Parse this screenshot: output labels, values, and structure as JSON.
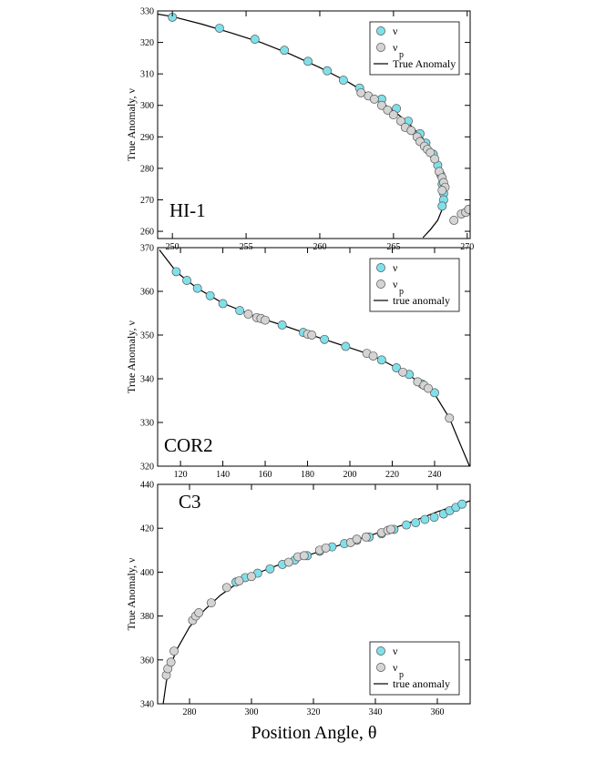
{
  "chart_data": [
    {
      "type": "scatter",
      "label": "HI-1",
      "ylabel": "True Anomaly, ν",
      "xlim": [
        249,
        270.2
      ],
      "ylim": [
        257.7,
        330
      ],
      "xticks": [
        250,
        255,
        260,
        265,
        270
      ],
      "yticks": [
        260,
        270,
        280,
        290,
        300,
        310,
        320,
        330
      ],
      "legend": "upper right",
      "series": [
        {
          "name": "ν",
          "color": "#80e0ea",
          "mode": "markers",
          "x": [
            250,
            253.2,
            255.6,
            257.6,
            259.2,
            260.5,
            261.6,
            262.7,
            264.2,
            265.2,
            266.0,
            266.8,
            267.2,
            267.7,
            268.0,
            268.2,
            268.3,
            268.4,
            268.4,
            268.3
          ],
          "values": [
            328,
            324.5,
            321,
            317.5,
            314,
            311,
            308,
            305.5,
            302,
            299,
            295,
            291,
            288,
            284.5,
            281,
            278,
            275,
            272,
            270,
            268
          ]
        },
        {
          "name": "ν",
          "subscript": "p",
          "color": "#d4d4d4",
          "mode": "markers",
          "x": [
            262.8,
            263.3,
            263.7,
            264.2,
            264.6,
            265.0,
            265.5,
            265.8,
            266.2,
            266.6,
            266.8,
            267.1,
            267.3,
            267.5,
            267.8,
            268.1,
            268.3,
            268.4,
            268.5,
            268.3,
            269.1,
            269.6,
            269.9,
            270.1
          ],
          "values": [
            304,
            303,
            302,
            300,
            298.5,
            297,
            295,
            293,
            292,
            290,
            288.5,
            287,
            286,
            285,
            283,
            279,
            277,
            275.5,
            274,
            273,
            263.5,
            265.5,
            266,
            267
          ]
        },
        {
          "name": "True Anomaly",
          "color": "#000000",
          "mode": "line",
          "x": [
            249.0,
            250,
            252,
            254,
            256,
            258,
            260,
            262,
            264,
            265,
            266,
            267,
            267.8,
            268.2,
            268.4,
            268.3,
            268.0,
            267.5,
            267.0
          ],
          "values": [
            329,
            328.2,
            325.8,
            323,
            320,
            316.3,
            312,
            307.2,
            301.5,
            298.3,
            294.5,
            289.5,
            283,
            277,
            271,
            267,
            263.5,
            260.5,
            258
          ]
        }
      ]
    },
    {
      "type": "scatter",
      "label": "COR2",
      "ylabel": "True Anomaly, ν",
      "xlim": [
        109.2,
        256.8
      ],
      "ylim": [
        320,
        370
      ],
      "xticks": [
        120,
        140,
        160,
        180,
        200,
        220,
        240
      ],
      "yticks": [
        320,
        330,
        340,
        350,
        360,
        370
      ],
      "legend": "upper right",
      "series": [
        {
          "name": "ν",
          "color": "#80e0ea",
          "mode": "markers",
          "x": [
            118,
            123,
            128,
            134,
            140,
            148,
            168,
            178,
            188,
            198,
            215,
            222,
            228,
            234,
            240
          ],
          "values": [
            364.5,
            362.5,
            360.7,
            359,
            357.2,
            355.6,
            352.3,
            350.6,
            349,
            347.4,
            344.3,
            342.5,
            341,
            338.8,
            336.8
          ]
        },
        {
          "name": "ν",
          "subscript": "p",
          "color": "#d4d4d4",
          "mode": "markers",
          "x": [
            152,
            156,
            158,
            160,
            180,
            182,
            208,
            211,
            225,
            232,
            235,
            237,
            247
          ],
          "values": [
            354.8,
            354,
            353.8,
            353.4,
            350.2,
            350,
            345.8,
            345.2,
            341.5,
            339.3,
            338.5,
            337.8,
            331
          ]
        },
        {
          "name": "true anomaly",
          "color": "#000000",
          "mode": "line",
          "x": [
            110,
            118,
            123,
            128,
            134,
            140,
            148,
            155,
            160,
            168,
            178,
            188,
            198,
            208,
            215,
            222,
            228,
            234,
            240,
            247,
            250,
            253,
            256.5
          ],
          "values": [
            369.5,
            364.5,
            362.5,
            360.7,
            359,
            357.3,
            355.7,
            354.3,
            353.5,
            352.3,
            350.6,
            349,
            347.4,
            345.8,
            344.3,
            342.5,
            340.8,
            338.8,
            336.5,
            331,
            327.5,
            324,
            320
          ]
        }
      ]
    },
    {
      "type": "scatter",
      "label": "C3",
      "ylabel": "True Anomaly, ν",
      "xlabel": "Position Angle, θ",
      "xlim": [
        269.7,
        370.6
      ],
      "ylim": [
        340,
        440
      ],
      "xticks": [
        280,
        300,
        320,
        340,
        360
      ],
      "yticks": [
        340,
        360,
        380,
        400,
        420,
        440
      ],
      "legend": "lower right",
      "series": [
        {
          "name": "ν",
          "color": "#80e0ea",
          "mode": "markers",
          "x": [
            295,
            298,
            302,
            306,
            310,
            314,
            318,
            322,
            326,
            330,
            334,
            338,
            342,
            346,
            350,
            353,
            356,
            359,
            362,
            364,
            366,
            368
          ],
          "values": [
            395.5,
            397.5,
            399.5,
            401.5,
            403.5,
            405.5,
            407.5,
            409.5,
            411.5,
            413,
            414.5,
            416,
            417.5,
            419.5,
            421.5,
            422.5,
            424,
            425,
            426.5,
            428,
            429.5,
            431
          ]
        },
        {
          "name": "ν",
          "subscript": "p",
          "color": "#d4d4d4",
          "mode": "markers",
          "x": [
            272.5,
            273,
            274,
            275,
            281,
            282,
            283,
            287,
            292,
            296,
            300,
            312,
            315,
            317,
            322,
            324,
            332,
            334,
            337,
            342,
            344,
            345
          ],
          "values": [
            353,
            356,
            359,
            364,
            378,
            380,
            381.5,
            386,
            393,
            396,
            398,
            404.5,
            407,
            407.5,
            410,
            411,
            413.5,
            415,
            416,
            418,
            419,
            419.5
          ]
        },
        {
          "name": "true anomaly",
          "color": "#000000",
          "mode": "line",
          "x": [
            271.5,
            272.5,
            274,
            276,
            280,
            285,
            290,
            295,
            300,
            310,
            320,
            330,
            340,
            350,
            360,
            370.6
          ],
          "values": [
            340,
            350,
            358,
            365,
            375,
            383,
            389.5,
            394.5,
            398.5,
            404,
            408.5,
            413,
            417.5,
            422,
            427.5,
            432.5
          ]
        }
      ]
    }
  ]
}
